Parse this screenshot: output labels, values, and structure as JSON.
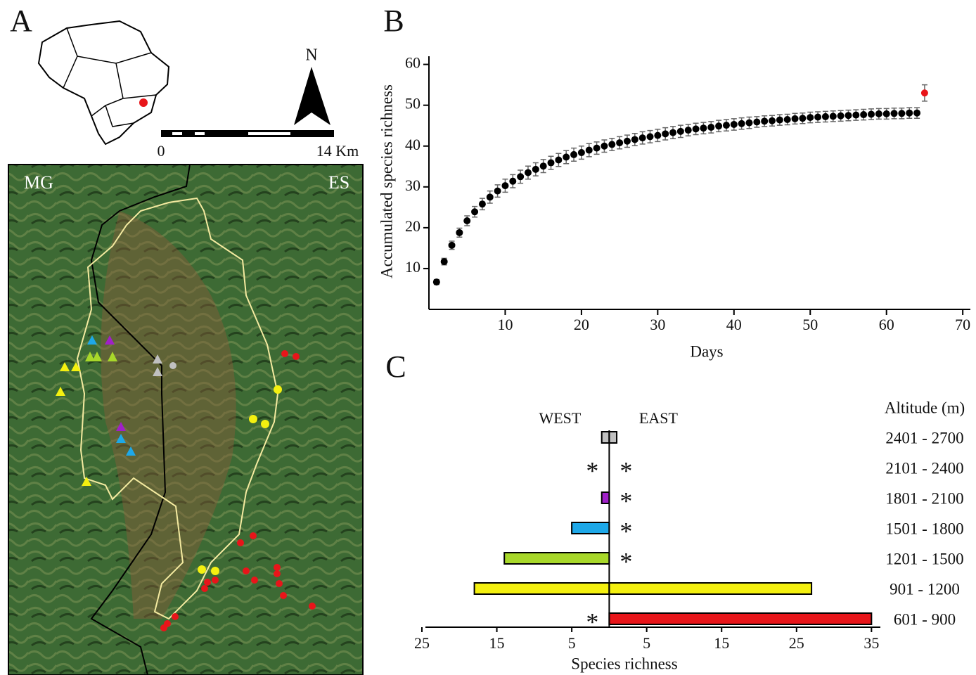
{
  "map": {
    "label": "A",
    "north": "N",
    "scale_start": "0",
    "scale_end": "14 Km",
    "left_region": "MG",
    "right_region": "ES"
  },
  "chart_data": [
    {
      "type": "scatter",
      "label": "B",
      "x_label": "Days",
      "y_label": "Accumulated species richness",
      "xlim": [
        0,
        71
      ],
      "ylim": [
        0,
        62
      ],
      "xticks": [
        10,
        20,
        30,
        40,
        50,
        60,
        70
      ],
      "yticks": [
        10,
        20,
        30,
        40,
        50,
        60
      ],
      "series": [
        {
          "color": "#000000",
          "x": [
            1,
            2,
            3,
            4,
            5,
            6,
            7,
            8,
            9,
            10,
            11,
            12,
            13,
            14,
            15,
            16,
            17,
            18,
            19,
            20,
            21,
            22,
            23,
            24,
            25,
            26,
            27,
            28,
            29,
            30,
            31,
            32,
            33,
            34,
            35,
            36,
            37,
            38,
            39,
            40,
            41,
            42,
            43,
            44,
            45,
            46,
            47,
            48,
            49,
            50,
            51,
            52,
            53,
            54,
            55,
            56,
            57,
            58,
            59,
            60,
            61,
            62,
            63,
            64
          ],
          "values": [
            6.7,
            11.7,
            15.7,
            18.8,
            21.7,
            23.9,
            25.8,
            27.5,
            29,
            30.3,
            31.4,
            32.5,
            33.5,
            34.3,
            35.1,
            35.9,
            36.6,
            37.3,
            37.9,
            38.4,
            39,
            39.5,
            40,
            40.4,
            40.8,
            41.2,
            41.6,
            42,
            42.3,
            42.6,
            43,
            43.3,
            43.6,
            43.9,
            44.2,
            44.4,
            44.6,
            44.9,
            45.1,
            45.3,
            45.5,
            45.7,
            45.9,
            46.1,
            46.2,
            46.4,
            46.5,
            46.7,
            46.8,
            47,
            47.1,
            47.2,
            47.3,
            47.4,
            47.5,
            47.6,
            47.7,
            47.8,
            47.9,
            47.9,
            48,
            48,
            48.1,
            48.1
          ],
          "errors": [
            0.6,
            0.8,
            1,
            1.1,
            1.2,
            1.3,
            1.4,
            1.5,
            1.5,
            1.6,
            1.6,
            1.6,
            1.6,
            1.6,
            1.6,
            1.6,
            1.6,
            1.6,
            1.6,
            1.6,
            1.6,
            1.5,
            1.5,
            1.5,
            1.5,
            1.5,
            1.5,
            1.5,
            1.5,
            1.5,
            1.5,
            1.5,
            1.5,
            1.4,
            1.4,
            1.4,
            1.4,
            1.4,
            1.4,
            1.4,
            1.4,
            1.4,
            1.3,
            1.3,
            1.3,
            1.3,
            1.3,
            1.3,
            1.3,
            1.3,
            1.3,
            1.3,
            1.3,
            1.3,
            1.3,
            1.3,
            1.3,
            1.3,
            1.3,
            1.3,
            1.3,
            1.3,
            1.3,
            1.3
          ]
        },
        {
          "color": "#e8151a",
          "x": [
            65
          ],
          "values": [
            53
          ],
          "errors": [
            2
          ]
        }
      ]
    },
    {
      "type": "diverging-bar",
      "label": "C",
      "x_label": "Species richness",
      "category_title": "Altitude (m)",
      "categories": [
        "2401 - 2700",
        "2101 - 2400",
        "1801 - 2100",
        "1501 - 1800",
        "1201 - 1500",
        "901 - 1200",
        "601 - 900"
      ],
      "colors": [
        "#c0c0c0",
        "#ffffff",
        "#a020c8",
        "#1ea8e8",
        "#a8d82a",
        "#f4f010",
        "#e8151a"
      ],
      "xlim": [
        -25,
        36
      ],
      "xticks": [
        {
          "value": -25,
          "label": "25"
        },
        {
          "value": -15,
          "label": "15"
        },
        {
          "value": -5,
          "label": "5"
        },
        5,
        15,
        25,
        35
      ],
      "series": [
        {
          "name": "WEST",
          "values": [
            1,
            null,
            1,
            5,
            14,
            18,
            null
          ],
          "value_labels": [
            null,
            "*",
            null,
            null,
            null,
            null,
            "*"
          ]
        },
        {
          "name": "EAST",
          "values": [
            1,
            null,
            null,
            null,
            null,
            27,
            35
          ],
          "value_labels": [
            null,
            "*",
            "*",
            "*",
            "*",
            null,
            null
          ]
        }
      ]
    }
  ]
}
